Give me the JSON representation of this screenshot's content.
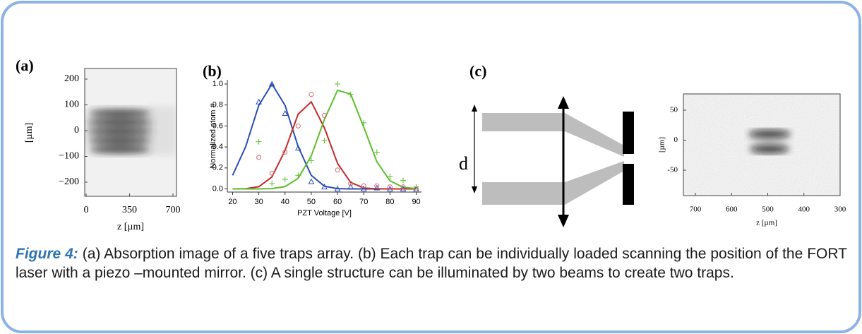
{
  "figure": {
    "panel_a": {
      "label": "(a)",
      "y_axis_label": "[µm]",
      "x_axis_label": "z [µm]",
      "yticks": [
        "200",
        "100",
        "0",
        "−100",
        "−200"
      ],
      "xticks": [
        "0",
        "350",
        "700"
      ]
    },
    "panel_c": {
      "label": "(c)",
      "diagram_label": "d",
      "y_axis_label": "[µm]",
      "x_axis_label": "z [µm]",
      "yticks": [
        "50",
        "0",
        "-50"
      ],
      "xticks": [
        "700",
        "600",
        "500",
        "400",
        "300"
      ]
    }
  },
  "chart_data": {
    "type": "line",
    "panel_label": "(b)",
    "x_label": "PZT Voltage [V]",
    "y_label": "Normalized atom #",
    "xlim": [
      18,
      92
    ],
    "ylim": [
      -0.03,
      1.04
    ],
    "xticks": [
      20,
      30,
      40,
      50,
      60,
      70,
      80,
      90
    ],
    "yticks": [
      {
        "value": 0,
        "label": "0.0"
      },
      {
        "value": 0.2,
        "label": "0.2"
      },
      {
        "value": 0.4,
        "label": "0.4"
      },
      {
        "value": 0.6,
        "label": "0.6"
      },
      {
        "value": 0.8,
        "label": "0.8"
      },
      {
        "value": 1,
        "label": "1.0"
      }
    ],
    "series": [
      {
        "color": "#2a4db5",
        "marker": "none",
        "x": [
          20,
          25,
          30,
          35,
          40,
          45,
          50,
          55,
          60,
          65,
          70,
          75,
          80,
          85,
          90
        ],
        "values": [
          0.129,
          0.403,
          0.797,
          1.0,
          0.797,
          0.403,
          0.129,
          0.026,
          0.003,
          0,
          0,
          0,
          0,
          0,
          0
        ]
      },
      {
        "color": "#c62828",
        "marker": "none",
        "x": [
          20,
          25,
          30,
          35,
          40,
          45,
          50,
          55,
          60,
          65,
          70,
          75,
          80,
          85,
          90
        ],
        "values": [
          0,
          0.002,
          0.021,
          0.114,
          0.367,
          0.713,
          0.83,
          0.582,
          0.244,
          0.062,
          0.009,
          0.001,
          0,
          0,
          0
        ]
      },
      {
        "color": "#5cbf2a",
        "marker": "none",
        "x": [
          20,
          25,
          30,
          35,
          40,
          45,
          50,
          55,
          60,
          65,
          70,
          75,
          80,
          85,
          90
        ],
        "values": [
          0,
          0,
          0,
          0.003,
          0.022,
          0.101,
          0.315,
          0.661,
          0.94,
          0.904,
          0.588,
          0.259,
          0.077,
          0.016,
          0.002
        ]
      },
      {
        "color": "#2a4db5",
        "marker": "triangle",
        "x": [
          30,
          35,
          40,
          45,
          50,
          55,
          60,
          65,
          70,
          75,
          80,
          85,
          90
        ],
        "values": [
          0.83,
          1.0,
          0.72,
          0.39,
          0.07,
          0.02,
          0.0,
          0.02,
          0.0,
          0.01,
          0.0,
          0.0,
          0.0
        ]
      },
      {
        "color": "#d46a6a",
        "marker": "circle",
        "x": [
          30,
          35,
          40,
          45,
          50,
          55,
          60,
          65,
          70,
          75,
          80,
          85,
          90
        ],
        "values": [
          0.3,
          0.15,
          0.35,
          0.6,
          0.9,
          0.7,
          0.18,
          0.05,
          0.03,
          0.03,
          0.02,
          0.02,
          0
        ]
      },
      {
        "color": "#5cbf2a",
        "marker": "plus",
        "x": [
          30,
          35,
          40,
          45,
          50,
          55,
          60,
          65,
          70,
          75,
          80,
          85,
          90
        ],
        "values": [
          0.45,
          0.05,
          0.09,
          0.13,
          0.27,
          0.46,
          1.0,
          0.9,
          0.63,
          0.35,
          0.12,
          0.08,
          0.02
        ]
      }
    ]
  },
  "caption": {
    "figure_label": "Figure 4:",
    "text": "(a) Absorption image of a five traps array. (b) Each trap can be individually loaded scanning the position of the FORT laser with a piezo –mounted mirror. (c) A single structure can be illuminated by two beams to create two traps."
  }
}
